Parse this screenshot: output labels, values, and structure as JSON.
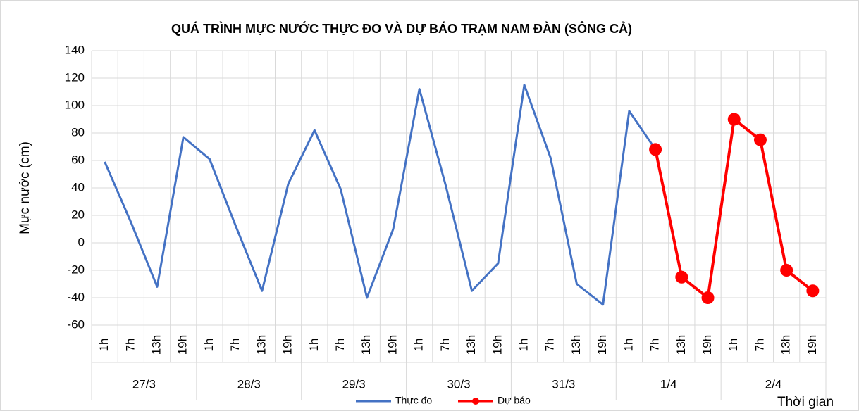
{
  "chart_data": {
    "type": "line",
    "title": "QUÁ TRÌNH MỰC NƯỚC THỰC ĐO VÀ DỰ BÁO TRẠM  NAM ĐÀN (SÔNG CẢ)",
    "y_label": "Mực nước (cm)",
    "x_label": "Thời gian",
    "categories": [
      "1h",
      "7h",
      "13h",
      "19h",
      "1h",
      "7h",
      "13h",
      "19h",
      "1h",
      "7h",
      "13h",
      "19h",
      "1h",
      "7h",
      "13h",
      "19h",
      "1h",
      "7h",
      "13h",
      "19h",
      "1h",
      "7h",
      "13h",
      "19h",
      "1h",
      "7h",
      "13h",
      "19h"
    ],
    "category_groups": [
      "27/3",
      "28/3",
      "29/3",
      "30/3",
      "31/3",
      "1/4",
      "2/4"
    ],
    "series": [
      {
        "name": "Thực đo",
        "color": "#4472c4",
        "marker": false,
        "values": [
          59,
          15,
          -32,
          77,
          61,
          12,
          -35,
          43,
          82,
          39,
          -40,
          10,
          112,
          42,
          -35,
          -15,
          115,
          62,
          -30,
          -45,
          96,
          68,
          null,
          null,
          null,
          null,
          null,
          null
        ]
      },
      {
        "name": "Dự báo",
        "color": "#ff0000",
        "marker": true,
        "values": [
          null,
          null,
          null,
          null,
          null,
          null,
          null,
          null,
          null,
          null,
          null,
          null,
          null,
          null,
          null,
          null,
          null,
          null,
          null,
          null,
          null,
          68,
          -25,
          -40,
          90,
          75,
          -20,
          -35
        ]
      }
    ],
    "ylim": [
      -60,
      140
    ],
    "yticks": [
      -60,
      -40,
      -20,
      0,
      20,
      40,
      60,
      80,
      100,
      120,
      140
    ],
    "grid": true,
    "legend": "bottom"
  }
}
